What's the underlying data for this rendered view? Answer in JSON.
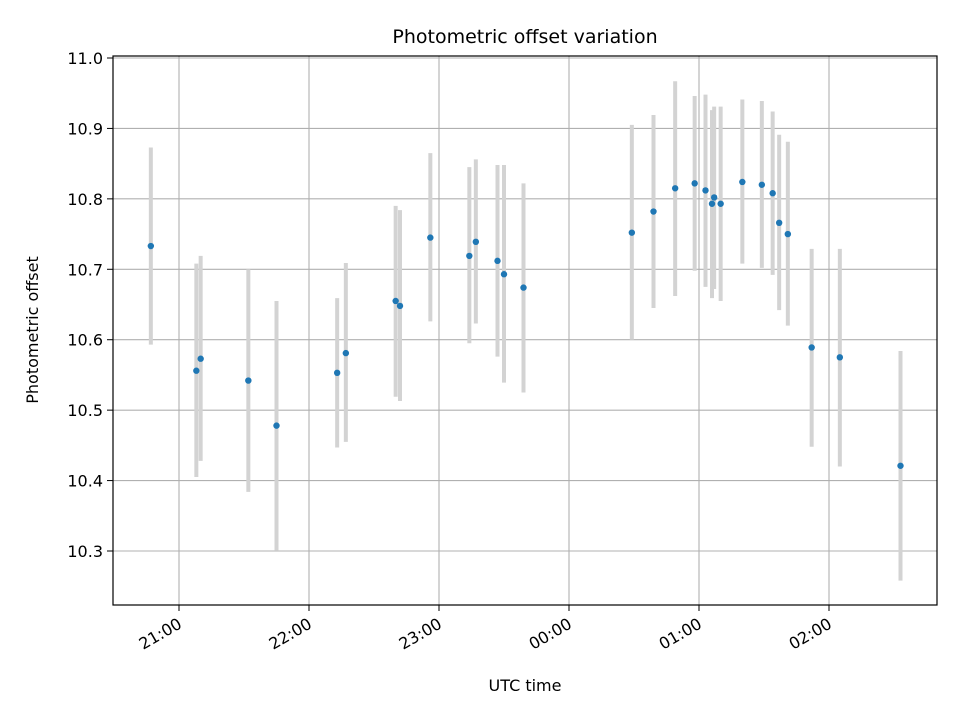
{
  "chart_data": {
    "type": "scatter",
    "title": "Photometric offset variation",
    "xlabel": "UTC time",
    "ylabel": "Photometric offset",
    "x_tick_labels": [
      "21:00",
      "22:00",
      "23:00",
      "00:00",
      "01:00",
      "02:00"
    ],
    "y_tick_labels": [
      "10.3",
      "10.4",
      "10.5",
      "10.6",
      "10.7",
      "10.8",
      "10.9",
      "11.0"
    ],
    "grid": true,
    "colors": {
      "point": "#1f77b4",
      "errorbar": "#d3d3d3",
      "grid": "#b0b0b0"
    },
    "series": [
      {
        "points": [
          {
            "t": "20:47",
            "y": 10.733,
            "lo": 10.593,
            "hi": 10.873
          },
          {
            "t": "21:08",
            "y": 10.556,
            "lo": 10.405,
            "hi": 10.708
          },
          {
            "t": "21:10",
            "y": 10.573,
            "lo": 10.428,
            "hi": 10.719
          },
          {
            "t": "21:32",
            "y": 10.542,
            "lo": 10.384,
            "hi": 10.7
          },
          {
            "t": "21:45",
            "y": 10.478,
            "lo": 10.301,
            "hi": 10.655
          },
          {
            "t": "22:13",
            "y": 10.553,
            "lo": 10.447,
            "hi": 10.659
          },
          {
            "t": "22:17",
            "y": 10.581,
            "lo": 10.455,
            "hi": 10.709
          },
          {
            "t": "22:40",
            "y": 10.655,
            "lo": 10.519,
            "hi": 10.79
          },
          {
            "t": "22:42",
            "y": 10.648,
            "lo": 10.513,
            "hi": 10.784
          },
          {
            "t": "22:56",
            "y": 10.745,
            "lo": 10.626,
            "hi": 10.865
          },
          {
            "t": "23:14",
            "y": 10.719,
            "lo": 10.595,
            "hi": 10.845
          },
          {
            "t": "23:17",
            "y": 10.739,
            "lo": 10.623,
            "hi": 10.856
          },
          {
            "t": "23:27",
            "y": 10.712,
            "lo": 10.576,
            "hi": 10.848
          },
          {
            "t": "23:30",
            "y": 10.693,
            "lo": 10.539,
            "hi": 10.848
          },
          {
            "t": "23:39",
            "y": 10.674,
            "lo": 10.525,
            "hi": 10.822
          },
          {
            "t": "00:29",
            "y": 10.752,
            "lo": 10.6,
            "hi": 10.905
          },
          {
            "t": "00:39",
            "y": 10.782,
            "lo": 10.645,
            "hi": 10.919
          },
          {
            "t": "00:49",
            "y": 10.815,
            "lo": 10.662,
            "hi": 10.967
          },
          {
            "t": "00:58",
            "y": 10.822,
            "lo": 10.698,
            "hi": 10.946
          },
          {
            "t": "01:03",
            "y": 10.812,
            "lo": 10.675,
            "hi": 10.948
          },
          {
            "t": "01:06",
            "y": 10.793,
            "lo": 10.659,
            "hi": 10.926
          },
          {
            "t": "01:07",
            "y": 10.802,
            "lo": 10.672,
            "hi": 10.931
          },
          {
            "t": "01:10",
            "y": 10.793,
            "lo": 10.655,
            "hi": 10.931
          },
          {
            "t": "01:20",
            "y": 10.824,
            "lo": 10.708,
            "hi": 10.941
          },
          {
            "t": "01:29",
            "y": 10.82,
            "lo": 10.702,
            "hi": 10.939
          },
          {
            "t": "01:34",
            "y": 10.808,
            "lo": 10.692,
            "hi": 10.924
          },
          {
            "t": "01:37",
            "y": 10.766,
            "lo": 10.642,
            "hi": 10.891
          },
          {
            "t": "01:41",
            "y": 10.75,
            "lo": 10.62,
            "hi": 10.881
          },
          {
            "t": "01:52",
            "y": 10.589,
            "lo": 10.448,
            "hi": 10.729
          },
          {
            "t": "02:05",
            "y": 10.575,
            "lo": 10.42,
            "hi": 10.729
          },
          {
            "t": "02:33",
            "y": 10.421,
            "lo": 10.258,
            "hi": 10.584
          }
        ]
      }
    ]
  }
}
